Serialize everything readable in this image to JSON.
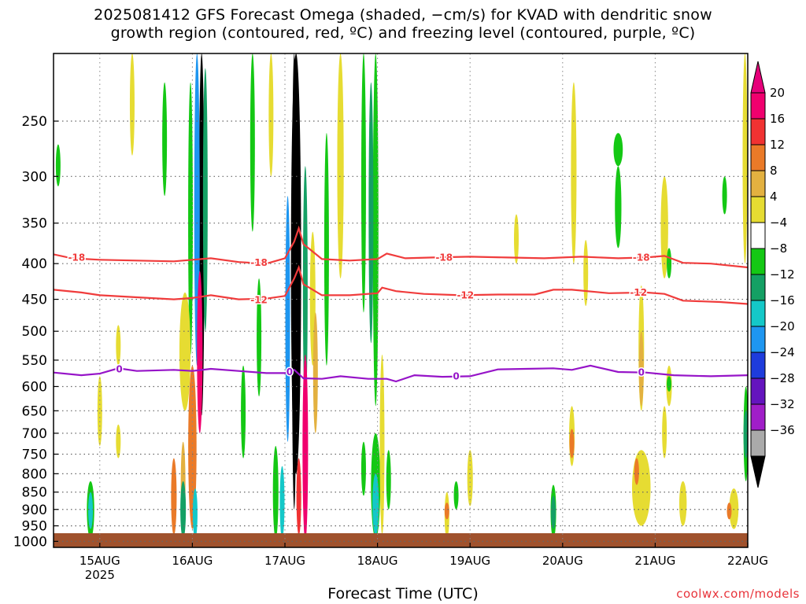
{
  "title_lines": [
    "2025081412 GFS Forecast Omega (shaded, −cm/s) for KVAD with dendritic snow",
    "growth region (contoured, red, ºC) and freezing level (contoured, purple, ºC)"
  ],
  "credit": "coolwx.com/models",
  "chart_data": {
    "type": "heatmap",
    "xlabel": "Forecast Time (UTC)",
    "ylabel": "",
    "x_ticks": [
      {
        "label": "15AUG",
        "sub": "2025",
        "day": 15
      },
      {
        "label": "16AUG",
        "sub": "",
        "day": 16
      },
      {
        "label": "17AUG",
        "sub": "",
        "day": 17
      },
      {
        "label": "18AUG",
        "sub": "",
        "day": 18
      },
      {
        "label": "19AUG",
        "sub": "",
        "day": 19
      },
      {
        "label": "20AUG",
        "sub": "",
        "day": 20
      },
      {
        "label": "21AUG",
        "sub": "",
        "day": 21
      },
      {
        "label": "22AUG",
        "sub": "",
        "day": 22
      }
    ],
    "xlim_days": [
      14.5,
      22.0
    ],
    "y_ticks": [
      250,
      300,
      350,
      400,
      450,
      500,
      550,
      600,
      650,
      700,
      750,
      800,
      850,
      900,
      950,
      1000
    ],
    "ylim_hpa": [
      200,
      1020
    ],
    "y_scale": "log",
    "grid": true,
    "colorbar": {
      "labels": [
        "20",
        "16",
        "12",
        "8",
        "4",
        "−4",
        "−8",
        "−12",
        "−16",
        "−20",
        "−24",
        "−28",
        "−32",
        "−36"
      ],
      "colors": [
        "#f0006e",
        "#f03232",
        "#ea7a28",
        "#e3b140",
        "#e6dc32",
        "#ffffff",
        "#14c814",
        "#14a064",
        "#14c8c8",
        "#1e96f0",
        "#1e3cdc",
        "#6414be",
        "#a01ec8",
        "#aaaaaa"
      ],
      "top_triangle": "#e6007a",
      "bottom_triangle": "#000000"
    },
    "contours": [
      {
        "label": "-18",
        "color": "#f03c3c",
        "x": [
          14.5,
          14.7,
          15.0,
          15.4,
          15.8,
          16.0,
          16.2,
          16.5,
          16.8,
          17.0,
          17.1,
          17.15,
          17.2,
          17.4,
          17.7,
          18.0,
          18.1,
          18.3,
          18.6,
          19.0,
          19.4,
          19.8,
          20.2,
          20.6,
          20.9,
          21.1,
          21.3,
          21.6,
          22.0
        ],
        "p": [
          388,
          393,
          395,
          396,
          397,
          395,
          393,
          398,
          400,
          393,
          372,
          356,
          375,
          394,
          396,
          394,
          387,
          393,
          392,
          391,
          392,
          393,
          391,
          393,
          392,
          390,
          399,
          400,
          405
        ]
      },
      {
        "label": "-12",
        "color": "#f03c3c",
        "x": [
          14.5,
          14.8,
          15.0,
          15.4,
          15.8,
          16.0,
          16.2,
          16.5,
          16.8,
          17.0,
          17.1,
          17.15,
          17.2,
          17.4,
          17.7,
          18.0,
          18.05,
          18.2,
          18.5,
          18.9,
          19.3,
          19.7,
          19.9,
          20.1,
          20.5,
          20.9,
          21.1,
          21.3,
          21.7,
          22.0
        ],
        "p": [
          436,
          440,
          444,
          447,
          450,
          448,
          444,
          450,
          449,
          445,
          420,
          405,
          428,
          444,
          444,
          441,
          433,
          438,
          442,
          444,
          443,
          443,
          436,
          436,
          441,
          440,
          442,
          452,
          454,
          457
        ]
      },
      {
        "label": "0",
        "color": "#9614c8",
        "x": [
          14.5,
          14.8,
          15.0,
          15.2,
          15.4,
          15.8,
          16.0,
          16.2,
          16.5,
          16.8,
          17.0,
          17.1,
          17.2,
          17.4,
          17.6,
          17.9,
          18.1,
          18.2,
          18.4,
          18.7,
          19.0,
          19.3,
          19.6,
          19.9,
          20.1,
          20.3,
          20.6,
          20.9,
          21.2,
          21.6,
          22.0
        ],
        "p": [
          573,
          578,
          575,
          565,
          570,
          568,
          570,
          566,
          570,
          574,
          574,
          568,
          584,
          585,
          580,
          585,
          585,
          590,
          578,
          581,
          580,
          567,
          566,
          565,
          568,
          560,
          572,
          573,
          578,
          580,
          578
        ]
      }
    ],
    "contour_labels": [
      {
        "text": "-18",
        "day": 14.75,
        "p": 392
      },
      {
        "text": "-18",
        "day": 16.72,
        "p": 399
      },
      {
        "text": "-18",
        "day": 18.72,
        "p": 392
      },
      {
        "text": "-18",
        "day": 20.85,
        "p": 392
      },
      {
        "text": "-12",
        "day": 16.72,
        "p": 451
      },
      {
        "text": "-12",
        "day": 18.95,
        "p": 444
      },
      {
        "text": "-12",
        "day": 20.82,
        "p": 440
      },
      {
        "text": "0",
        "day": 15.21,
        "p": 567
      },
      {
        "text": "0",
        "day": 17.05,
        "p": 572
      },
      {
        "text": "0",
        "day": 18.85,
        "p": 580
      },
      {
        "text": "0",
        "day": 20.85,
        "p": 573
      }
    ],
    "omega_patches": [
      {
        "day": 16.1,
        "w": 0.06,
        "p": [
          200,
          660
        ],
        "value": -36
      },
      {
        "day": 16.05,
        "w": 0.06,
        "p": [
          200,
          560
        ],
        "value": -20
      },
      {
        "day": 15.98,
        "w": 0.05,
        "p": [
          220,
          540
        ],
        "value": -8
      },
      {
        "day": 16.14,
        "w": 0.04,
        "p": [
          210,
          500
        ],
        "value": -12
      },
      {
        "day": 16.0,
        "w": 0.09,
        "p": [
          560,
          960
        ],
        "value": 12
      },
      {
        "day": 16.08,
        "w": 0.06,
        "p": [
          410,
          700
        ],
        "value": 20
      },
      {
        "day": 15.9,
        "w": 0.05,
        "p": [
          720,
          960
        ],
        "value": 8
      },
      {
        "day": 15.8,
        "w": 0.06,
        "p": [
          760,
          980
        ],
        "value": 12
      },
      {
        "day": 15.9,
        "w": 0.06,
        "p": [
          820,
          990
        ],
        "value": -12
      },
      {
        "day": 16.03,
        "w": 0.05,
        "p": [
          840,
          990
        ],
        "value": -16
      },
      {
        "day": 15.92,
        "w": 0.12,
        "p": [
          440,
          650
        ],
        "value": 4
      },
      {
        "day": 17.12,
        "w": 0.11,
        "p": [
          200,
          800
        ],
        "value": -36
      },
      {
        "day": 17.1,
        "w": 0.05,
        "p": [
          200,
          900
        ],
        "value": -36
      },
      {
        "day": 17.03,
        "w": 0.05,
        "p": [
          320,
          720
        ],
        "value": -20
      },
      {
        "day": 17.22,
        "w": 0.05,
        "p": [
          290,
          650
        ],
        "value": -12
      },
      {
        "day": 17.3,
        "w": 0.06,
        "p": [
          360,
          560
        ],
        "value": 4
      },
      {
        "day": 17.22,
        "w": 0.06,
        "p": [
          540,
          1000
        ],
        "value": 20
      },
      {
        "day": 17.15,
        "w": 0.04,
        "p": [
          760,
          980
        ],
        "value": 16
      },
      {
        "day": 17.33,
        "w": 0.05,
        "p": [
          470,
          700
        ],
        "value": 8
      },
      {
        "day": 16.9,
        "w": 0.06,
        "p": [
          730,
          990
        ],
        "value": -8
      },
      {
        "day": 16.97,
        "w": 0.05,
        "p": [
          780,
          990
        ],
        "value": -16
      },
      {
        "day": 17.45,
        "w": 0.05,
        "p": [
          260,
          560
        ],
        "value": -8
      },
      {
        "day": 16.65,
        "w": 0.04,
        "p": [
          200,
          360
        ],
        "value": -8
      },
      {
        "day": 16.55,
        "w": 0.03,
        "p": [
          560,
          760
        ],
        "value": -8
      },
      {
        "day": 16.72,
        "w": 0.02,
        "p": [
          420,
          620
        ],
        "value": -8
      },
      {
        "day": 17.98,
        "w": 0.06,
        "p": [
          200,
          640
        ],
        "value": -8
      },
      {
        "day": 17.93,
        "w": 0.05,
        "p": [
          220,
          520
        ],
        "value": -12
      },
      {
        "day": 17.85,
        "w": 0.05,
        "p": [
          200,
          470
        ],
        "value": -8
      },
      {
        "day": 17.98,
        "w": 0.1,
        "p": [
          700,
          990
        ],
        "value": -8
      },
      {
        "day": 17.98,
        "w": 0.07,
        "p": [
          800,
          980
        ],
        "value": -16
      },
      {
        "day": 17.85,
        "w": 0.03,
        "p": [
          720,
          860
        ],
        "value": -8
      },
      {
        "day": 18.12,
        "w": 0.04,
        "p": [
          740,
          900
        ],
        "value": -8
      },
      {
        "day": 17.6,
        "w": 0.07,
        "p": [
          200,
          420
        ],
        "value": 4
      },
      {
        "day": 18.05,
        "w": 0.05,
        "p": [
          540,
          980
        ],
        "value": 4
      },
      {
        "day": 15.2,
        "w": 0.03,
        "p": [
          680,
          760
        ],
        "value": 4
      },
      {
        "day": 14.9,
        "w": 0.08,
        "p": [
          820,
          990
        ],
        "value": -8
      },
      {
        "day": 14.9,
        "w": 0.05,
        "p": [
          850,
          960
        ],
        "value": -16
      },
      {
        "day": 15.0,
        "w": 0.03,
        "p": [
          580,
          730
        ],
        "value": 4
      },
      {
        "day": 15.2,
        "w": 0.05,
        "p": [
          490,
          560
        ],
        "value": 4
      },
      {
        "day": 15.7,
        "w": 0.03,
        "p": [
          220,
          320
        ],
        "value": -8
      },
      {
        "day": 15.35,
        "w": 0.05,
        "p": [
          200,
          280
        ],
        "value": 4
      },
      {
        "day": 16.85,
        "w": 0.05,
        "p": [
          200,
          300
        ],
        "value": 4
      },
      {
        "day": 14.55,
        "w": 0.05,
        "p": [
          270,
          310
        ],
        "value": -8
      },
      {
        "day": 18.75,
        "w": 0.05,
        "p": [
          850,
          990
        ],
        "value": 4
      },
      {
        "day": 18.75,
        "w": 0.03,
        "p": [
          880,
          930
        ],
        "value": 12
      },
      {
        "day": 19.0,
        "w": 0.06,
        "p": [
          740,
          890
        ],
        "value": 4
      },
      {
        "day": 18.85,
        "w": 0.02,
        "p": [
          820,
          900
        ],
        "value": -8
      },
      {
        "day": 19.9,
        "w": 0.06,
        "p": [
          830,
          990
        ],
        "value": -8
      },
      {
        "day": 19.9,
        "w": 0.04,
        "p": [
          860,
          960
        ],
        "value": -12
      },
      {
        "day": 20.1,
        "w": 0.06,
        "p": [
          640,
          780
        ],
        "value": 4
      },
      {
        "day": 20.1,
        "w": 0.04,
        "p": [
          690,
          760
        ],
        "value": 12
      },
      {
        "day": 20.12,
        "w": 0.06,
        "p": [
          220,
          400
        ],
        "value": 4
      },
      {
        "day": 20.25,
        "w": 0.03,
        "p": [
          370,
          460
        ],
        "value": 4
      },
      {
        "day": 20.6,
        "w": 0.1,
        "p": [
          260,
          290
        ],
        "value": -8
      },
      {
        "day": 20.6,
        "w": 0.07,
        "p": [
          290,
          380
        ],
        "value": -8
      },
      {
        "day": 20.85,
        "w": 0.06,
        "p": [
          430,
          650
        ],
        "value": 4
      },
      {
        "day": 20.85,
        "w": 0.03,
        "p": [
          500,
          640
        ],
        "value": 8
      },
      {
        "day": 20.85,
        "w": 0.2,
        "p": [
          740,
          950
        ],
        "value": 4
      },
      {
        "day": 20.8,
        "w": 0.05,
        "p": [
          760,
          830
        ],
        "value": 12
      },
      {
        "day": 21.1,
        "w": 0.08,
        "p": [
          300,
          420
        ],
        "value": 4
      },
      {
        "day": 21.15,
        "w": 0.06,
        "p": [
          560,
          640
        ],
        "value": 4
      },
      {
        "day": 21.15,
        "w": 0.05,
        "p": [
          580,
          610
        ],
        "value": -8
      },
      {
        "day": 21.1,
        "w": 0.05,
        "p": [
          640,
          760
        ],
        "value": 4
      },
      {
        "day": 21.15,
        "w": 0.05,
        "p": [
          380,
          420
        ],
        "value": -8
      },
      {
        "day": 21.3,
        "w": 0.08,
        "p": [
          820,
          950
        ],
        "value": 4
      },
      {
        "day": 21.85,
        "w": 0.1,
        "p": [
          840,
          960
        ],
        "value": 4
      },
      {
        "day": 21.8,
        "w": 0.04,
        "p": [
          880,
          930
        ],
        "value": 12
      },
      {
        "day": 21.98,
        "w": 0.05,
        "p": [
          600,
          820
        ],
        "value": -8
      },
      {
        "day": 21.98,
        "w": 0.03,
        "p": [
          650,
          760
        ],
        "value": -12
      },
      {
        "day": 21.97,
        "w": 0.05,
        "p": [
          200,
          400
        ],
        "value": 4
      },
      {
        "day": 21.75,
        "w": 0.04,
        "p": [
          300,
          340
        ],
        "value": -8
      },
      {
        "day": 19.5,
        "w": 0.04,
        "p": [
          340,
          400
        ],
        "value": 4
      }
    ]
  }
}
